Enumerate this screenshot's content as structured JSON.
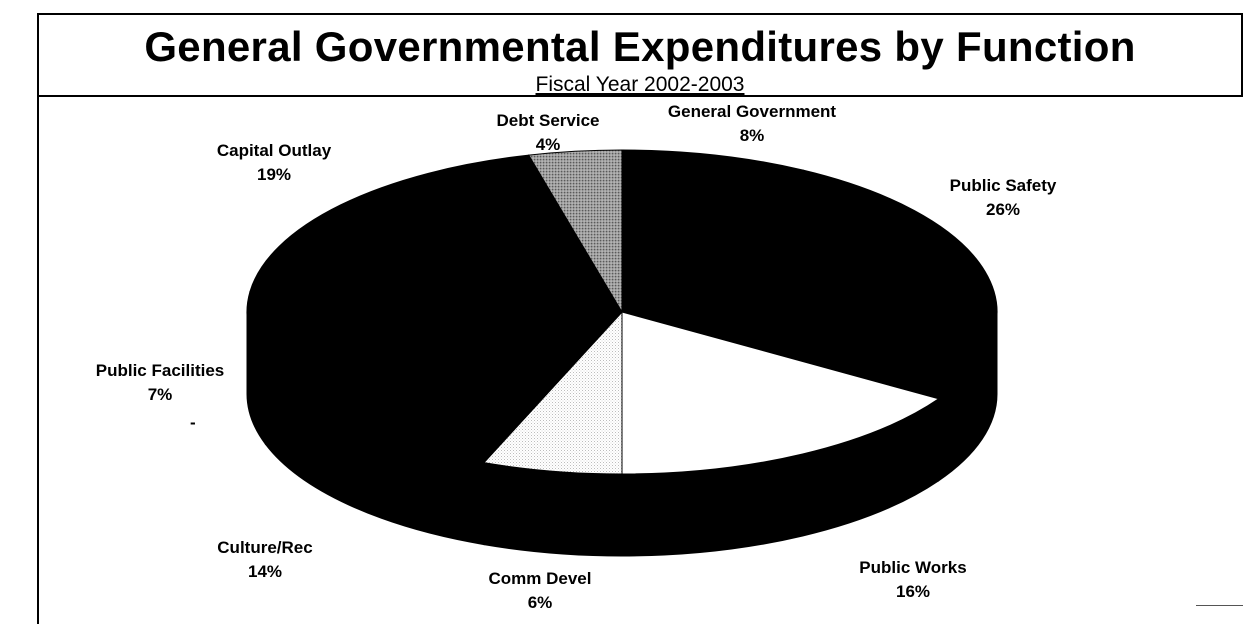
{
  "title": "General Governmental Expenditures by Function",
  "subtitle": "Fiscal Year 2002-2003",
  "chart_data": {
    "type": "pie",
    "title": "General Governmental Expenditures by Function",
    "subtitle": "Fiscal Year 2002-2003",
    "slices": [
      {
        "label": "General Government",
        "percent": "8%",
        "value": 8,
        "color": "#000000"
      },
      {
        "label": "Public Safety",
        "percent": "26%",
        "value": 26,
        "color": "#000000"
      },
      {
        "label": "Public Works",
        "percent": "16%",
        "value": 16,
        "color": "#ffffff"
      },
      {
        "label": "Comm Devel",
        "percent": "6%",
        "value": 6,
        "color": "#f2f2f2"
      },
      {
        "label": "Culture/Rec",
        "percent": "14%",
        "value": 14,
        "color": "#000000"
      },
      {
        "label": "Public Facilities",
        "percent": "7%",
        "value": 7,
        "color": "#000000"
      },
      {
        "label": "Capital Outlay",
        "percent": "19%",
        "value": 19,
        "color": "#000000"
      },
      {
        "label": "Debt Service",
        "percent": "4%",
        "value": 4,
        "color": "#8c8c8c"
      }
    ],
    "style": "3d-pie"
  },
  "stray_mark": "-"
}
